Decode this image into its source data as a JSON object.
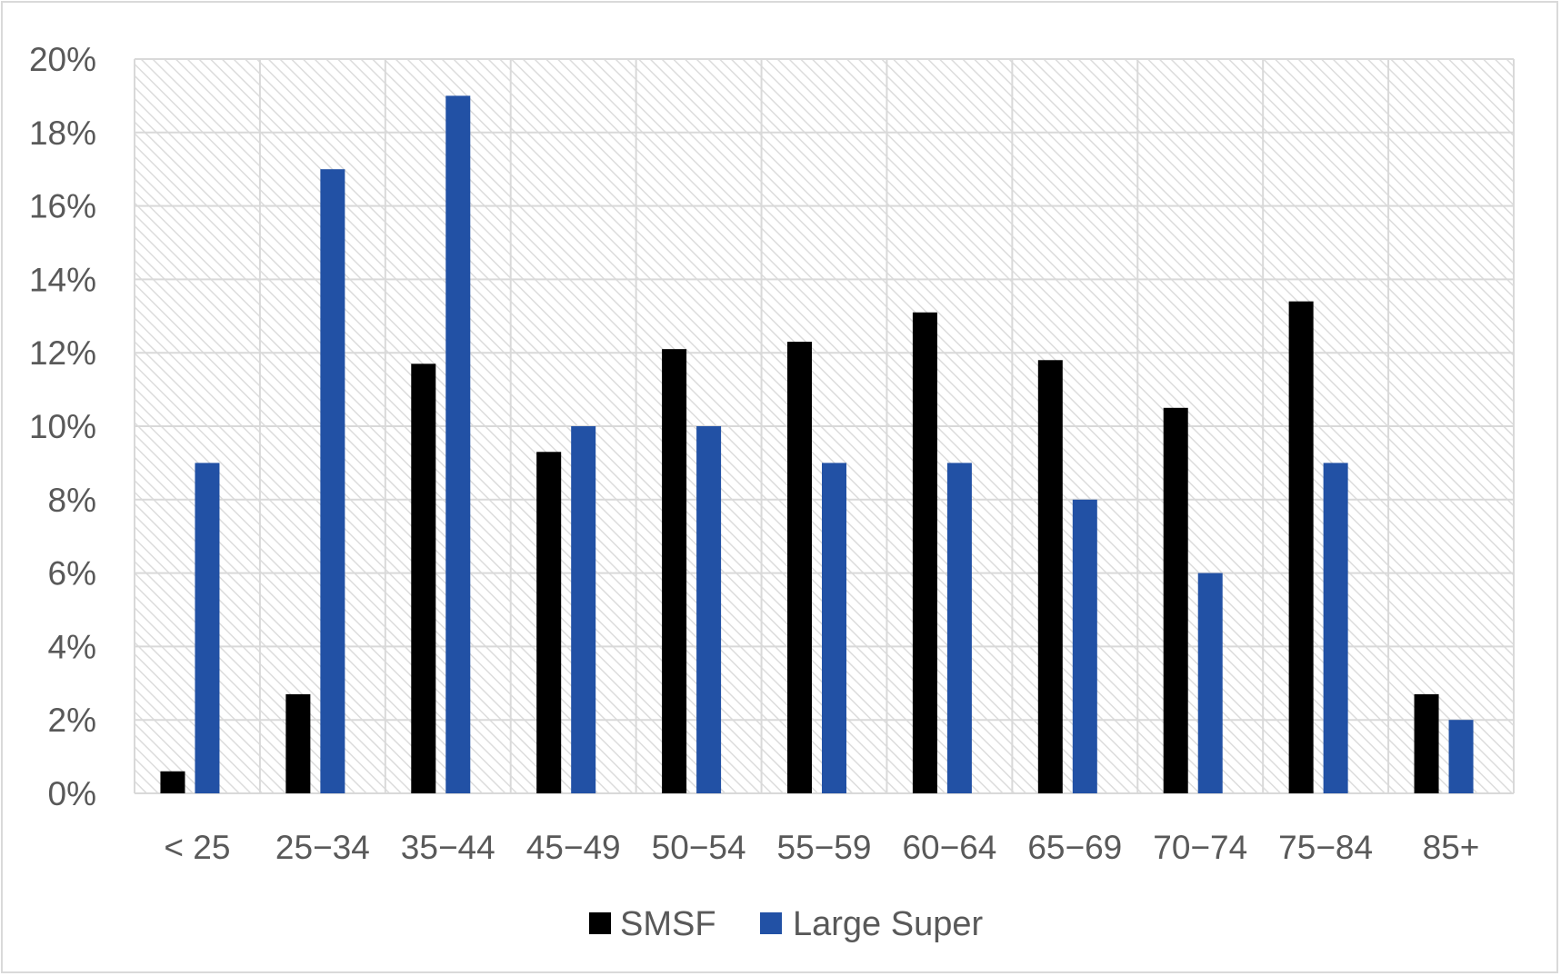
{
  "colors": {
    "smsf": "#000000",
    "large_super": "#2251a5",
    "grid": "#d9d9d9",
    "text": "#595959"
  },
  "chart_data": {
    "type": "bar",
    "categories": [
      "< 25",
      "25−34",
      "35−44",
      "45−49",
      "50−54",
      "55−59",
      "60−64",
      "65−69",
      "70−74",
      "75−84",
      "85+"
    ],
    "series": [
      {
        "name": "SMSF",
        "values": [
          0.6,
          2.7,
          11.7,
          9.3,
          12.1,
          12.3,
          13.1,
          11.8,
          10.5,
          13.4,
          2.7
        ]
      },
      {
        "name": "Large Super",
        "values": [
          9,
          17,
          19,
          10,
          10,
          9,
          9,
          8,
          6,
          9,
          2
        ]
      }
    ],
    "y_ticks": [
      "0%",
      "2%",
      "4%",
      "6%",
      "8%",
      "10%",
      "12%",
      "14%",
      "16%",
      "18%",
      "20%"
    ],
    "ylim": [
      0,
      20
    ],
    "title": "",
    "xlabel": "",
    "ylabel": "",
    "grid": true,
    "plot_background": "diagonal hatch",
    "legend_position": "bottom"
  }
}
